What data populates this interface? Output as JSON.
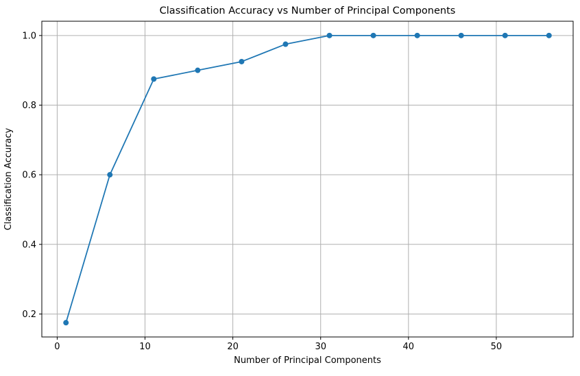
{
  "figure": {
    "background": "#ffffff"
  },
  "chart_data": {
    "type": "line",
    "title": "Classification Accuracy vs Number of Principal Components",
    "xlabel": "Number of Principal Components",
    "ylabel": "Classification Accuracy",
    "x": [
      1,
      6,
      11,
      16,
      21,
      26,
      31,
      36,
      41,
      46,
      51,
      56
    ],
    "y": [
      0.175,
      0.6,
      0.875,
      0.9,
      0.925,
      0.975,
      1.0,
      1.0,
      1.0,
      1.0,
      1.0,
      1.0
    ],
    "xticks": [
      0,
      10,
      20,
      30,
      40,
      50
    ],
    "yticks": [
      0.2,
      0.4,
      0.6,
      0.8,
      1.0
    ],
    "xlim": [
      -1.75,
      58.75
    ],
    "ylim": [
      0.134,
      1.041
    ],
    "grid": true,
    "legend": "none",
    "line_color": "#1f77b4",
    "marker": "circle",
    "grid_color": "#b0b0b0",
    "axis_color": "#000000",
    "text_color": "#000000"
  }
}
